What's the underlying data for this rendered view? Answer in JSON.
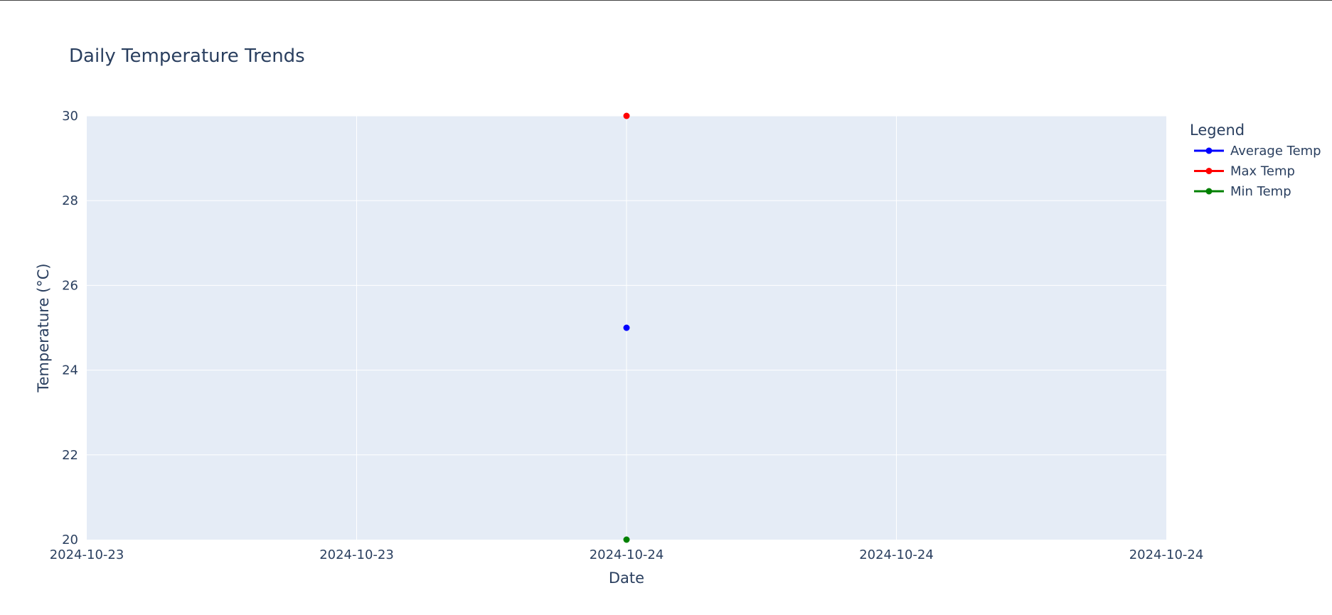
{
  "chart_data": {
    "type": "line",
    "title": "Daily Temperature Trends",
    "xlabel": "Date",
    "ylabel": "Temperature (°C)",
    "x_tick_labels": [
      "2024-10-23",
      "2024-10-23",
      "2024-10-24",
      "2024-10-24",
      "2024-10-24"
    ],
    "y_ticks": [
      20,
      22,
      24,
      26,
      28,
      30
    ],
    "ylim": [
      20,
      30
    ],
    "x": [
      "2024-10-24"
    ],
    "grid": true,
    "legend": {
      "title": "Legend",
      "placement": "right"
    },
    "series": [
      {
        "name": "Average Temp",
        "color": "#0000ff",
        "values": [
          25
        ]
      },
      {
        "name": "Max Temp",
        "color": "#ff0000",
        "values": [
          30
        ]
      },
      {
        "name": "Min Temp",
        "color": "#008000",
        "values": [
          20
        ]
      }
    ],
    "plot_background": "#e5ecf6",
    "grid_color": "#ffffff"
  }
}
